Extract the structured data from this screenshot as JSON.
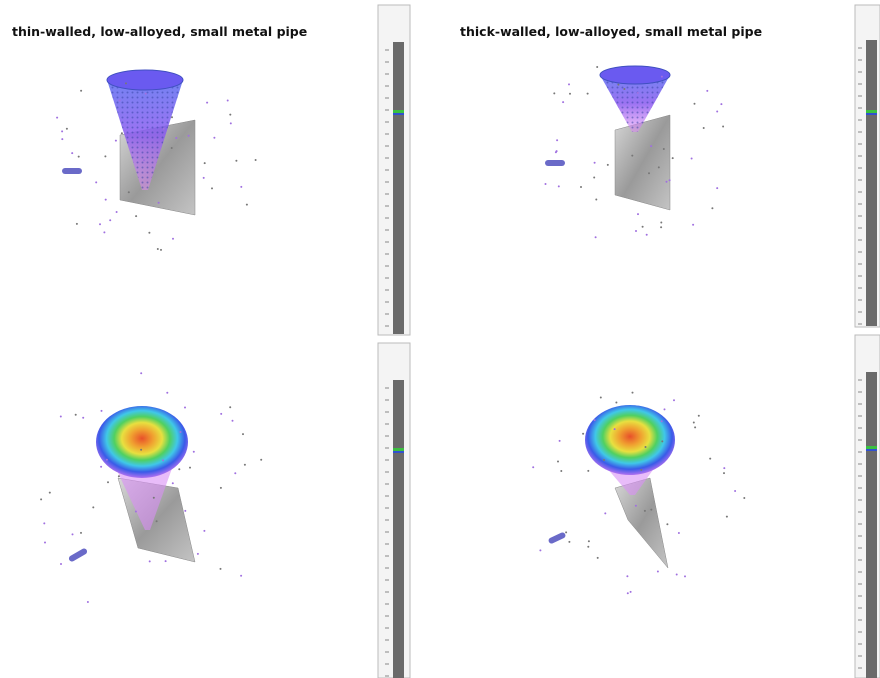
{
  "panels": [
    {
      "title": "thin-walled, low-alloyed, small metal pipe"
    },
    {
      "title": "thick-walled, low-alloyed, small metal pipe"
    }
  ]
}
